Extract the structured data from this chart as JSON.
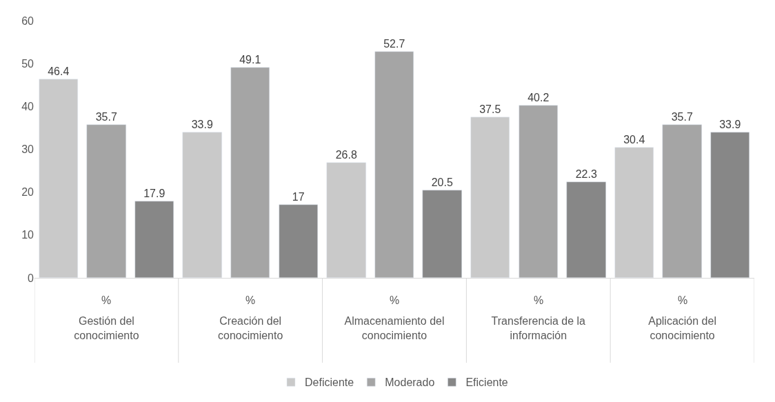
{
  "chart_data": {
    "type": "bar",
    "categories": [
      "Gestión del conocimiento",
      "Creación del conocimiento",
      "Almacenamiento del conocimiento",
      "Transferencia de la información",
      "Aplicación del conocimiento"
    ],
    "series": [
      {
        "name": "Deficiente",
        "color": "#c9c9c9",
        "values": [
          46.4,
          33.9,
          26.8,
          37.5,
          30.4
        ]
      },
      {
        "name": "Moderado",
        "color": "#a5a5a5",
        "values": [
          35.7,
          49.1,
          52.7,
          40.2,
          35.7
        ]
      },
      {
        "name": "Eficiente",
        "color": "#878787",
        "values": [
          17.9,
          17,
          20.5,
          22.3,
          33.9
        ]
      }
    ],
    "annotations": [
      "%",
      "%",
      "%",
      "%",
      "%"
    ],
    "ylim": [
      0,
      60
    ],
    "yticks": [
      0,
      10,
      20,
      30,
      40,
      50,
      60
    ],
    "grid": false,
    "legend": "bottom",
    "data_labels": true
  }
}
